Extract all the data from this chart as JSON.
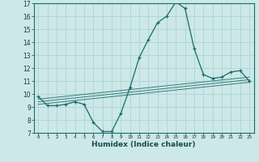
{
  "xlabel": "Humidex (Indice chaleur)",
  "xlim": [
    -0.5,
    23.5
  ],
  "ylim": [
    7,
    17
  ],
  "yticks": [
    7,
    8,
    9,
    10,
    11,
    12,
    13,
    14,
    15,
    16,
    17
  ],
  "xticks": [
    0,
    1,
    2,
    3,
    4,
    5,
    6,
    7,
    8,
    9,
    10,
    11,
    12,
    13,
    14,
    15,
    16,
    17,
    18,
    19,
    20,
    21,
    22,
    23
  ],
  "background_color": "#cce8e8",
  "line_color": "#1a6b6b",
  "grid_color": "#aacfcf",
  "main_line_x": [
    0,
    1,
    2,
    3,
    4,
    5,
    6,
    7,
    8,
    9,
    10,
    11,
    12,
    13,
    14,
    15,
    16,
    17,
    18,
    19,
    20,
    21,
    22,
    23
  ],
  "main_line_y": [
    9.8,
    9.1,
    9.1,
    9.2,
    9.4,
    9.2,
    7.8,
    7.1,
    7.1,
    8.5,
    10.5,
    12.8,
    14.2,
    15.5,
    16.0,
    17.1,
    16.6,
    13.5,
    11.5,
    11.2,
    11.3,
    11.7,
    11.8,
    11.0
  ],
  "trend_lines": [
    {
      "x": [
        0,
        23
      ],
      "y": [
        9.2,
        10.9
      ]
    },
    {
      "x": [
        0,
        23
      ],
      "y": [
        9.4,
        11.1
      ]
    },
    {
      "x": [
        0,
        23
      ],
      "y": [
        9.6,
        11.3
      ]
    }
  ]
}
